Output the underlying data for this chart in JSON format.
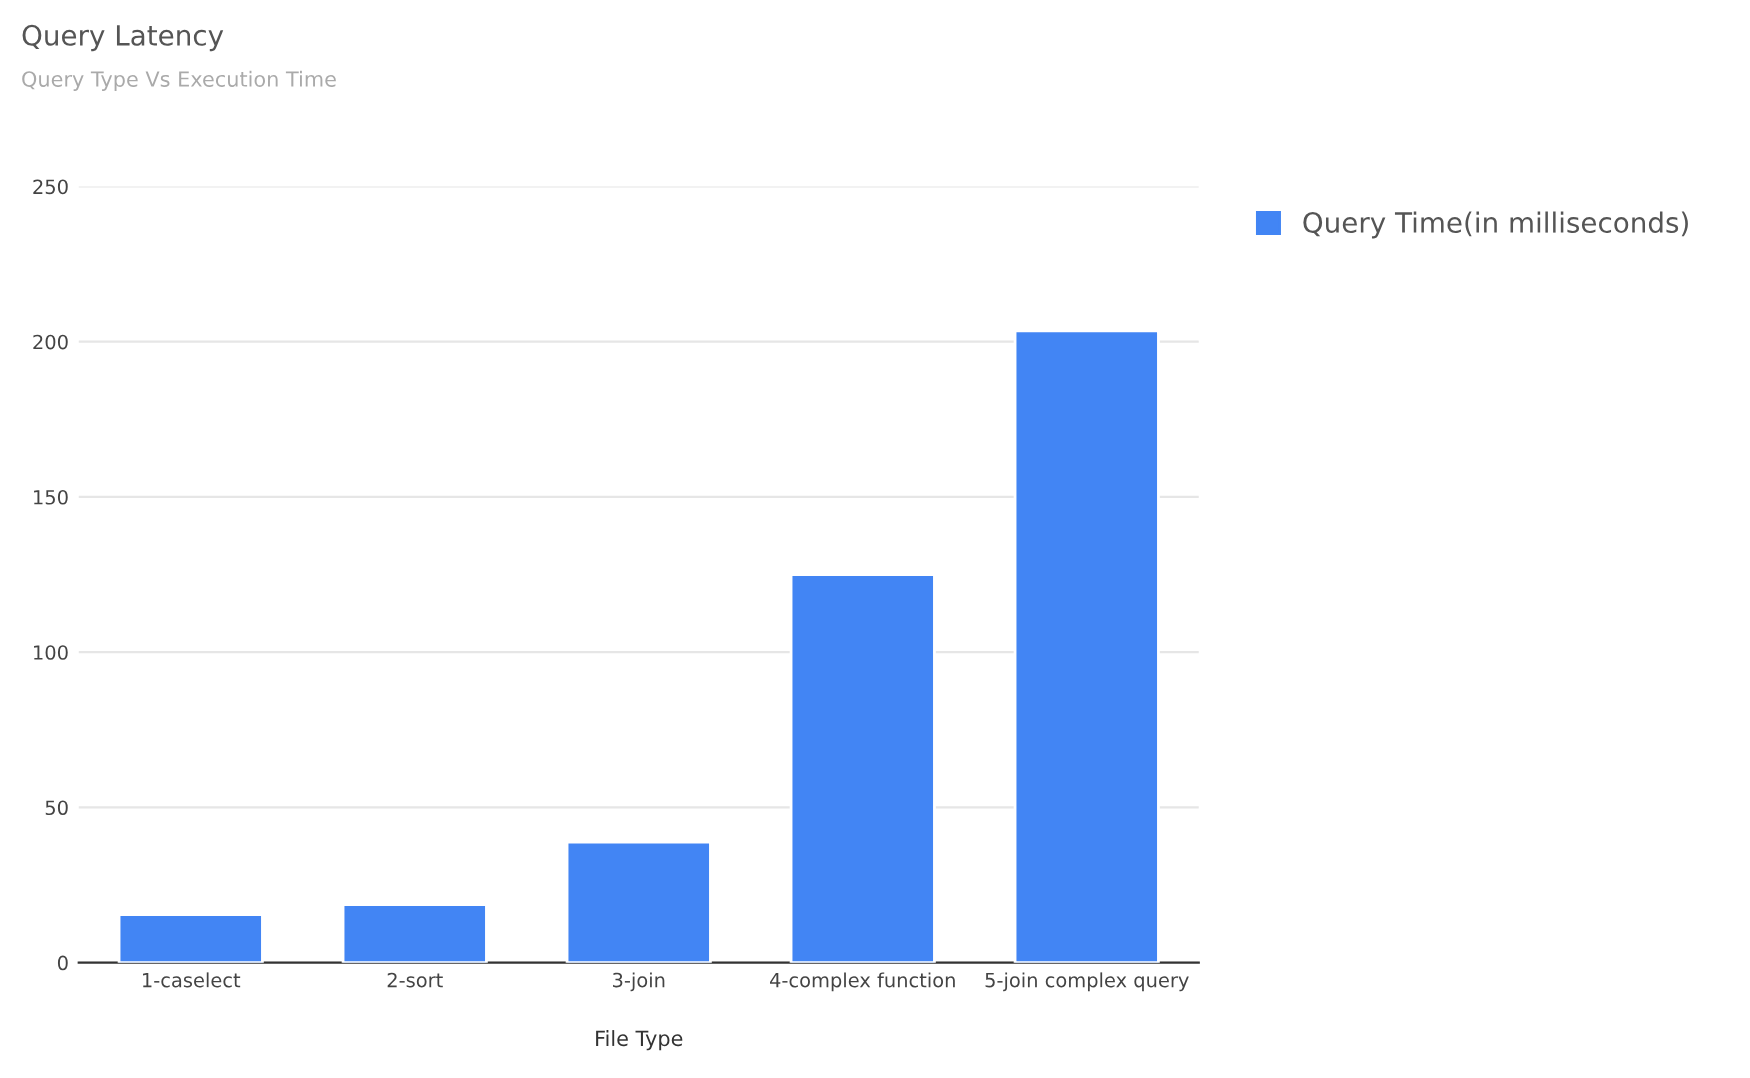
{
  "chart_data": {
    "type": "bar",
    "title": "Query Latency",
    "subtitle": "Query Type Vs Execution Time",
    "xlabel": "File Type",
    "categories": [
      "1-caselect",
      "2-sort",
      "3-join",
      "4-complex function",
      "5-join complex query"
    ],
    "series": [
      {
        "name": "Query Time(in milliseconds)",
        "color": "#4285f4",
        "values": [
          15.5,
          18.7,
          38.8,
          125,
          203.5
        ]
      }
    ],
    "ylim": [
      0,
      250
    ],
    "yticks": [
      0,
      50,
      100,
      150,
      200,
      250
    ],
    "grid": "y",
    "legend": "top right"
  }
}
